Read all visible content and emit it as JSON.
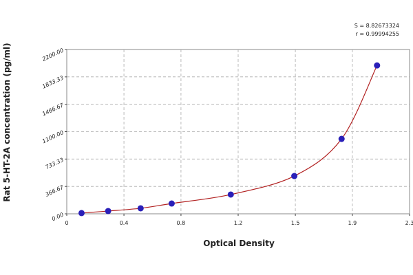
{
  "chart_data": {
    "type": "scatter",
    "x_label": "Optical Density",
    "y_label": "Rat 5-HT-2A concentration (pg/ml)",
    "annotations": [
      "S = 8.82673324",
      "r = 0.99994255"
    ],
    "series": [
      {
        "color": "#2a1fb8",
        "curve_color": "#b22222",
        "x": [
          0.1,
          0.28,
          0.5,
          0.71,
          1.11,
          1.54,
          1.86,
          2.1
        ],
        "values": [
          10,
          37,
          74,
          138,
          258,
          506,
          1003,
          1987
        ]
      }
    ],
    "xlim": [
      0,
      2.32
    ],
    "xticks": [
      0,
      {
        "value": 0.387,
        "label": "0.4"
      },
      {
        "value": 0.773,
        "label": "0.8"
      },
      {
        "value": 1.16,
        "label": "1.2"
      },
      {
        "value": 1.547,
        "label": "1.5"
      },
      {
        "value": 1.933,
        "label": "1.9"
      },
      {
        "value": 2.32,
        "label": "2.3"
      }
    ],
    "ylim": [
      0,
      2200
    ],
    "yticks": [
      {
        "value": 0,
        "label": "0.00"
      },
      {
        "value": 366.67,
        "label": "366.67"
      },
      {
        "value": 733.33,
        "label": "733.33"
      },
      {
        "value": 1100,
        "label": "1100.00"
      },
      {
        "value": 1466.67,
        "label": "1466.67"
      },
      {
        "value": 1833.33,
        "label": "1833.33"
      },
      {
        "value": 2200,
        "label": "2200.00"
      }
    ],
    "grid": true
  }
}
